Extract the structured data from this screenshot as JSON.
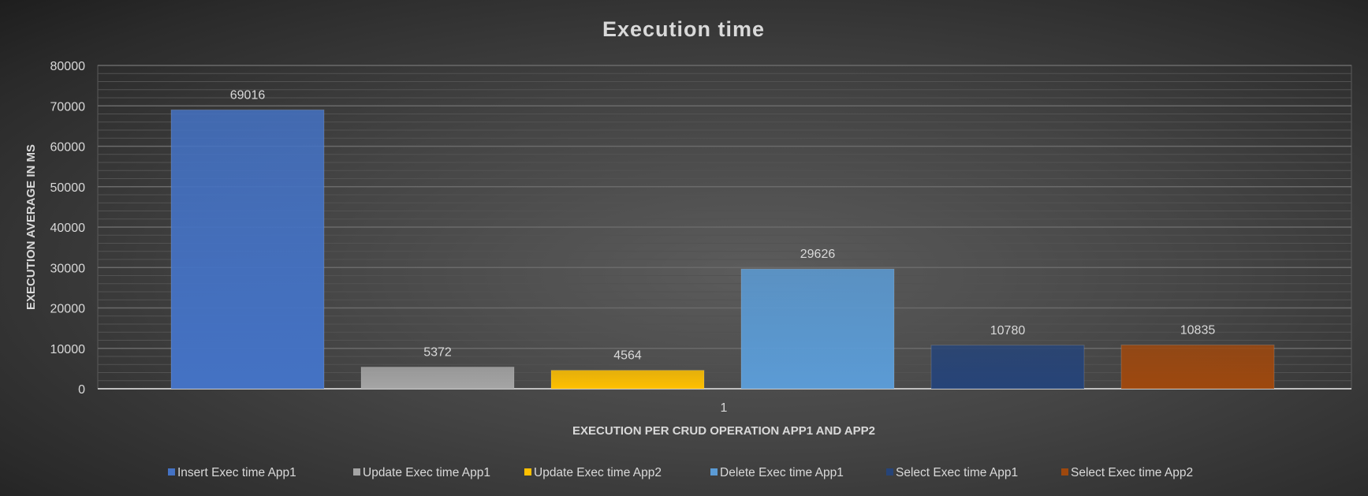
{
  "chart_data": {
    "type": "bar",
    "title": "Execution time",
    "xlabel": "EXECUTION PER CRUD OPERATION APP1 AND APP2",
    "ylabel": "EXECUTION  AVERAGE IN MS",
    "categories": [
      "1"
    ],
    "ylim": [
      0,
      80000
    ],
    "yticks": [
      0,
      10000,
      20000,
      30000,
      40000,
      50000,
      60000,
      70000,
      80000
    ],
    "grid": true,
    "legend": "bottom",
    "series": [
      {
        "name": "Insert Exec time App1",
        "values": [
          69016
        ],
        "color": "#4472c4"
      },
      {
        "name": "Update Exec time App1",
        "values": [
          5372
        ],
        "color": "#a5a5a5"
      },
      {
        "name": "Update Exec time App2",
        "values": [
          4564
        ],
        "color": "#ffc000"
      },
      {
        "name": "Delete Exec time App1",
        "values": [
          29626
        ],
        "color": "#5b9bd5"
      },
      {
        "name": "Select Exec time App1",
        "values": [
          10780
        ],
        "color": "#264478"
      },
      {
        "name": "Select Exec time App2",
        "values": [
          10835
        ],
        "color": "#9e480e"
      }
    ]
  }
}
